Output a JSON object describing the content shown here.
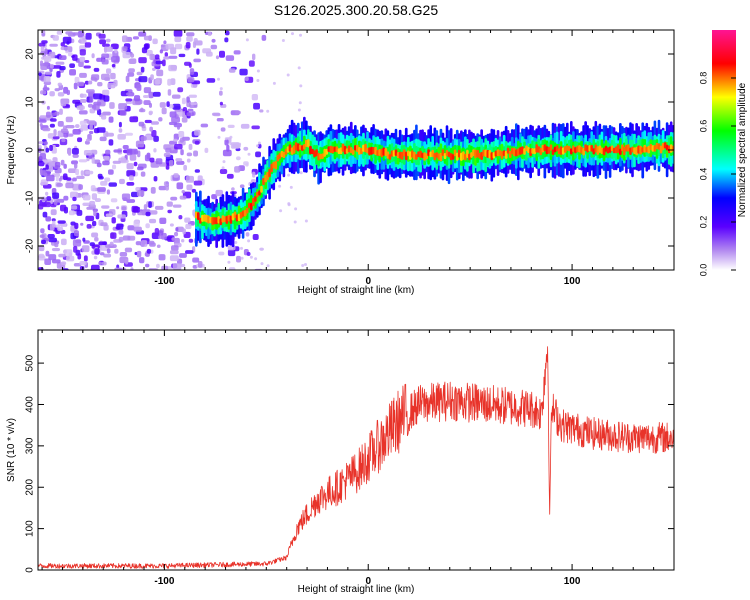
{
  "title": "S126.2025.300.20.58.G25",
  "colors": {
    "snr_line": "#e8332a",
    "colormap": [
      "#ffffff",
      "#8a2be2",
      "#0000ff",
      "#00ffff",
      "#00ff00",
      "#ffff00",
      "#ff0000",
      "#ff1493"
    ]
  },
  "chart_data": [
    {
      "type": "heatmap",
      "xlabel": "Height of straight line (km)",
      "ylabel": "Frequency (Hz)",
      "xlim": [
        -162,
        150
      ],
      "ylim": [
        -25,
        25
      ],
      "xticks": [
        -100,
        0,
        100
      ],
      "yticks": [
        20,
        10,
        0,
        -10,
        -20
      ],
      "colorbar": {
        "label": "Normalized spectral amplitude",
        "range": [
          0,
          1
        ],
        "ticks": [
          0.0,
          0.2,
          0.4,
          0.6,
          0.8
        ]
      },
      "ridge": {
        "x": [
          -85,
          -78,
          -70,
          -62,
          -57,
          -52,
          -48,
          -44,
          -40,
          -35,
          -30,
          -25,
          -20,
          -10,
          0,
          10,
          20,
          40,
          60,
          80,
          100,
          120,
          140,
          150
        ],
        "y": [
          -14,
          -15,
          -14.5,
          -13.5,
          -11,
          -7,
          -4,
          -1.5,
          0,
          0.5,
          1,
          -1.5,
          0,
          0,
          0,
          -1,
          -1,
          -1,
          -1,
          0,
          0,
          0,
          0.5,
          0.5
        ]
      }
    },
    {
      "type": "line",
      "xlabel": "Height of straight line (km)",
      "ylabel": "SNR (10 * v/v)",
      "xlim": [
        -162,
        150
      ],
      "ylim": [
        0,
        580
      ],
      "xticks": [
        -100,
        0,
        100
      ],
      "yticks": [
        0,
        100,
        200,
        300,
        400,
        500
      ],
      "series": [
        {
          "x": [
            -162,
            -100,
            -50,
            -40,
            -35,
            -25,
            -15,
            -5,
            5,
            15,
            20,
            25,
            40,
            60,
            80,
            85,
            88,
            89,
            90,
            95,
            110,
            130,
            150
          ],
          "y": [
            10,
            10,
            15,
            30,
            100,
            170,
            200,
            240,
            300,
            360,
            380,
            400,
            410,
            400,
            390,
            380,
            550,
            150,
            390,
            350,
            330,
            320,
            320
          ]
        }
      ]
    }
  ]
}
